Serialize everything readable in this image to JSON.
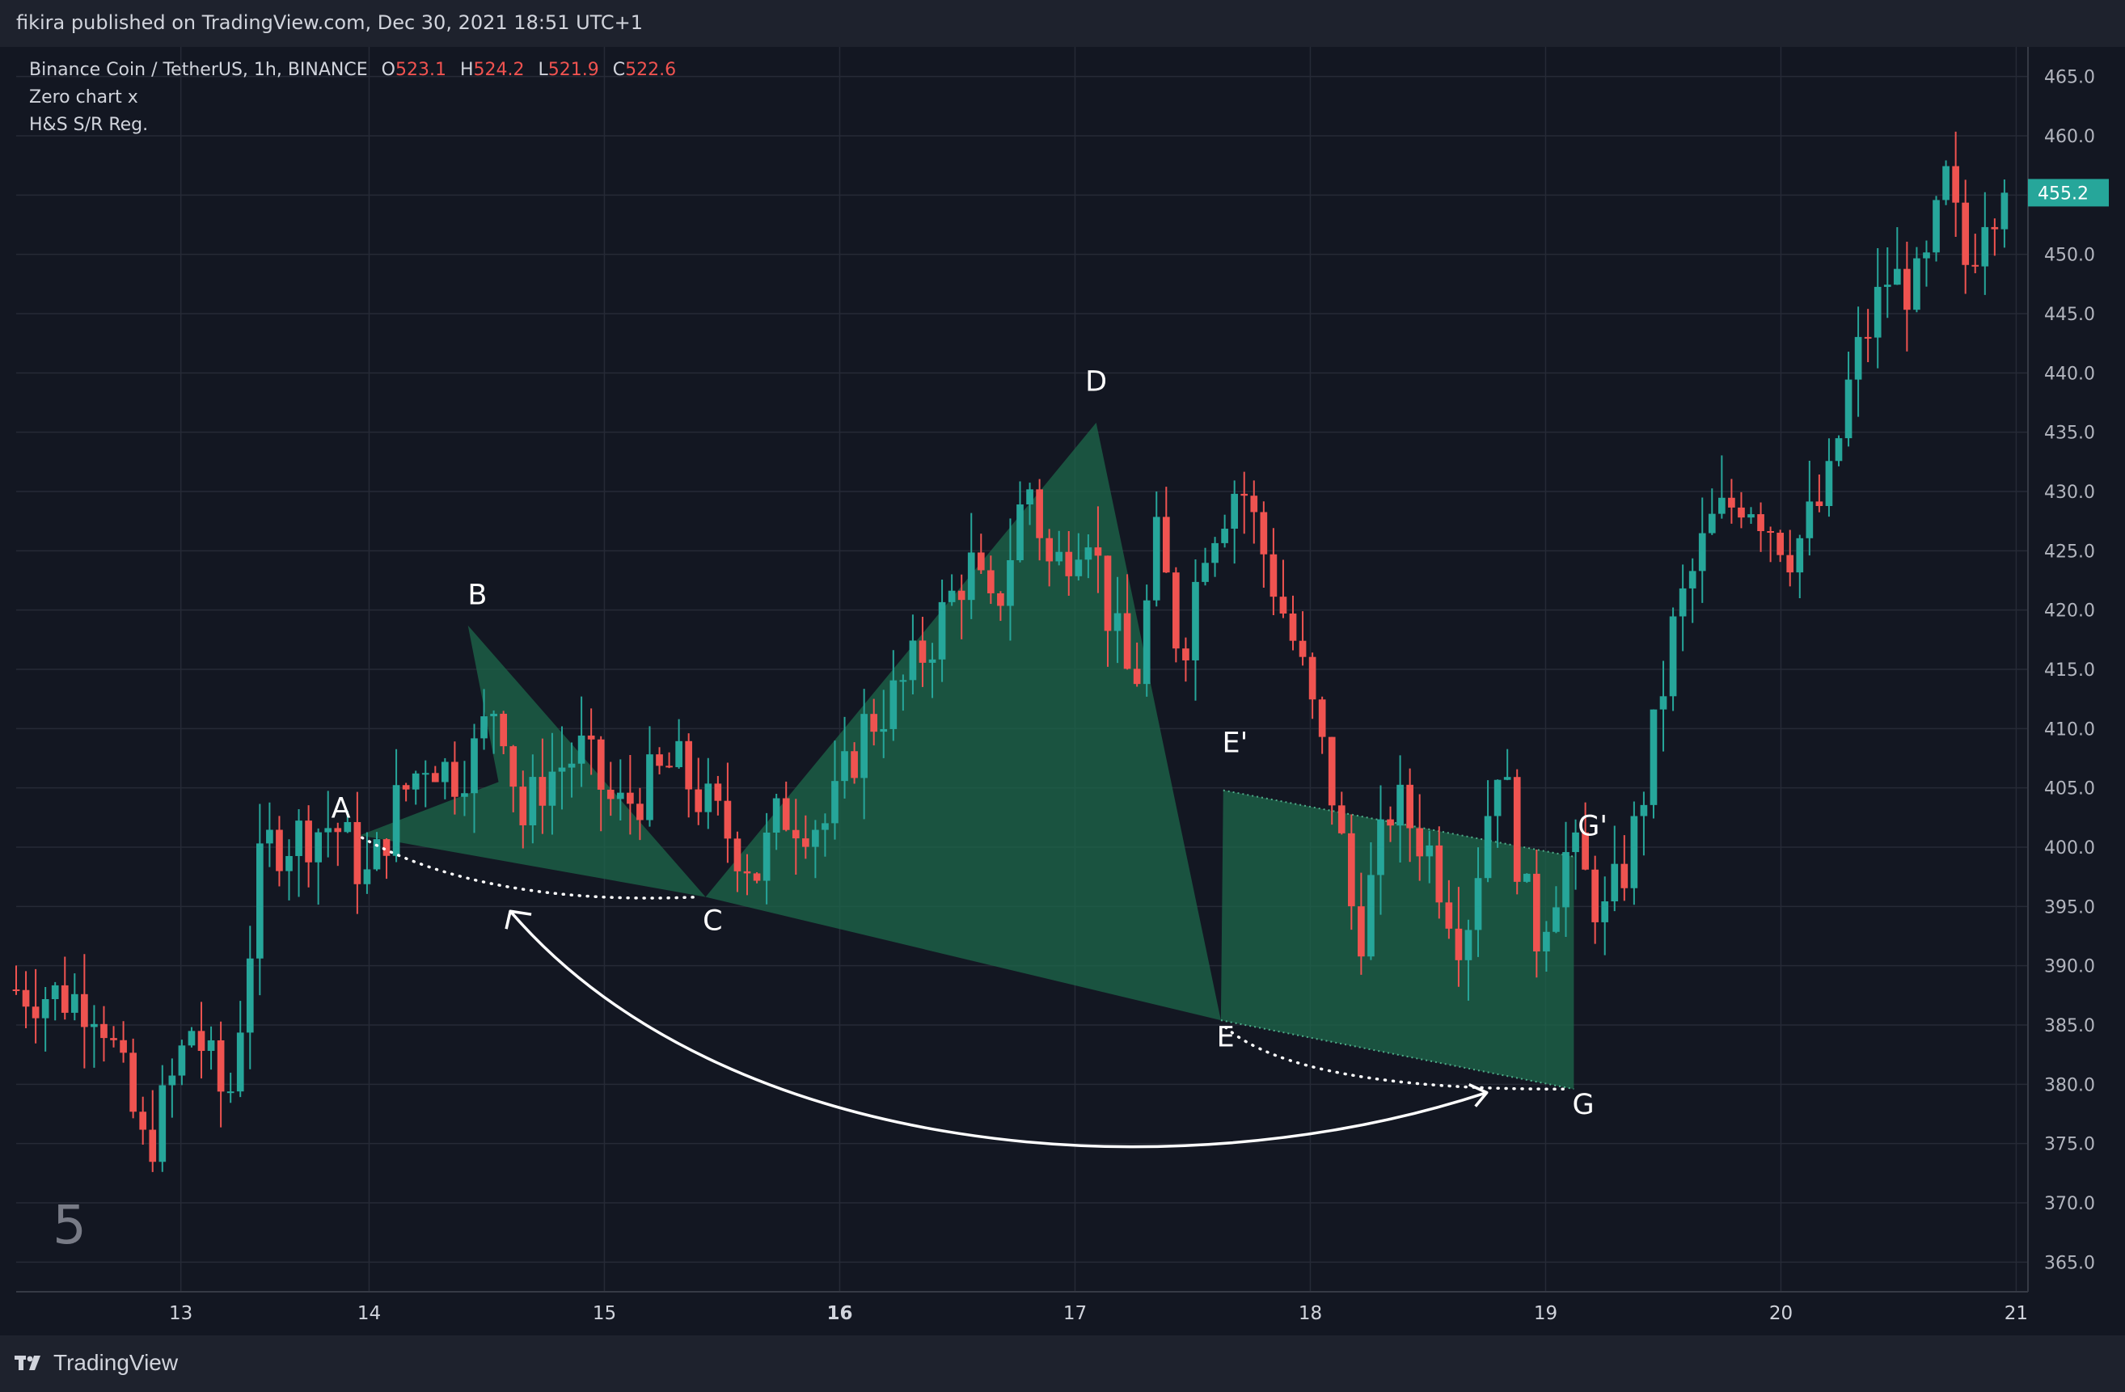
{
  "header": {
    "published_text": "fikira published on TradingView.com, Dec 30, 2021 18:51 UTC+1"
  },
  "legend": {
    "symbol": "Binance Coin / TetherUS, 1h, BINANCE",
    "open_label": "O",
    "open": "523.1",
    "high_label": "H",
    "high": "524.2",
    "low_label": "L",
    "low": "521.9",
    "close_label": "C",
    "close": "522.6",
    "indicator1": "Zero chart x",
    "indicator2": "H&S S/R Reg."
  },
  "chart_number": "5",
  "footer": {
    "brand": "TradingView"
  },
  "colors": {
    "background": "#131722",
    "up": "#26a69a",
    "down": "#ef5350",
    "pattern_fill": "#1d6b4c",
    "price_tag": "#26a69a"
  },
  "chart_data": {
    "type": "candlestick",
    "symbol": "BNBUSDT",
    "interval": "1h",
    "ylim": [
      362.5,
      467.5
    ],
    "y_ticks": [
      "465.0",
      "460.0",
      "455.0",
      "450.0",
      "445.0",
      "440.0",
      "435.0",
      "430.0",
      "425.0",
      "420.0",
      "415.0",
      "410.0",
      "405.0",
      "400.0",
      "395.0",
      "390.0",
      "385.0",
      "380.0",
      "375.0",
      "370.0",
      "365.0"
    ],
    "x_ticks": [
      {
        "label": "13",
        "bold": false,
        "pos": 12.7
      },
      {
        "label": "14",
        "bold": false,
        "pos": 13.5
      },
      {
        "label": "15",
        "bold": false,
        "pos": 14.5
      },
      {
        "label": "16",
        "bold": true,
        "pos": 15.5
      },
      {
        "label": "17",
        "bold": false,
        "pos": 16.5
      },
      {
        "label": "18",
        "bold": false,
        "pos": 17.5
      },
      {
        "label": "19",
        "bold": false,
        "pos": 18.5
      },
      {
        "label": "20",
        "bold": false,
        "pos": 19.5
      },
      {
        "label": "21",
        "bold": false,
        "pos": 20.5
      }
    ],
    "last_price": "455.2",
    "anchors": [
      [
        12.0,
        388
      ],
      [
        12.35,
        387
      ],
      [
        12.55,
        374
      ],
      [
        12.75,
        385
      ],
      [
        12.9,
        378
      ],
      [
        13.05,
        400
      ],
      [
        13.35,
        402
      ],
      [
        13.5,
        397
      ],
      [
        13.6,
        403
      ],
      [
        13.75,
        408
      ],
      [
        13.85,
        406
      ],
      [
        13.95,
        408
      ],
      [
        14.05,
        413
      ],
      [
        14.15,
        402
      ],
      [
        14.25,
        406
      ],
      [
        14.4,
        408
      ],
      [
        14.55,
        403
      ],
      [
        14.8,
        407
      ],
      [
        14.95,
        403
      ],
      [
        15.15,
        398
      ],
      [
        15.25,
        403
      ],
      [
        15.45,
        402
      ],
      [
        15.6,
        410
      ],
      [
        15.75,
        413
      ],
      [
        15.9,
        418
      ],
      [
        16.05,
        424
      ],
      [
        16.15,
        419
      ],
      [
        16.3,
        431
      ],
      [
        16.4,
        423
      ],
      [
        16.55,
        428
      ],
      [
        16.65,
        419
      ],
      [
        16.75,
        413
      ],
      [
        16.85,
        426
      ],
      [
        16.95,
        416
      ],
      [
        17.05,
        426
      ],
      [
        17.2,
        431
      ],
      [
        17.3,
        425
      ],
      [
        17.45,
        416
      ],
      [
        17.6,
        404
      ],
      [
        17.7,
        392
      ],
      [
        17.85,
        404
      ],
      [
        18.0,
        400
      ],
      [
        18.15,
        392
      ],
      [
        18.3,
        408
      ],
      [
        18.45,
        392
      ],
      [
        18.6,
        400
      ],
      [
        18.75,
        394
      ],
      [
        18.85,
        399
      ],
      [
        18.9,
        403
      ],
      [
        19.05,
        419
      ],
      [
        19.2,
        427
      ],
      [
        19.35,
        430
      ],
      [
        19.55,
        425
      ],
      [
        19.7,
        430
      ],
      [
        19.8,
        440
      ],
      [
        19.95,
        448
      ],
      [
        20.1,
        447
      ],
      [
        20.2,
        456
      ],
      [
        20.3,
        448
      ],
      [
        20.35,
        454
      ],
      [
        20.45,
        455.2
      ]
    ],
    "pattern_points": {
      "A": [
        13.46,
        401
      ],
      "B": [
        13.92,
        418.7
      ],
      "C": [
        14.93,
        395.8
      ],
      "D": [
        16.59,
        435.8
      ],
      "E": [
        17.12,
        385.4
      ],
      "E_prime": [
        17.13,
        404.8
      ],
      "G": [
        18.62,
        379.6
      ],
      "G_prime": [
        18.62,
        399.2
      ],
      "F": [
        14.05,
        405.5
      ]
    },
    "labels": [
      {
        "text": "A",
        "x": 13.38,
        "y": 402.5
      },
      {
        "text": "B",
        "x": 13.96,
        "y": 420.5
      },
      {
        "text": "C",
        "x": 14.96,
        "y": 393.0
      },
      {
        "text": "D",
        "x": 16.59,
        "y": 438.5
      },
      {
        "text": "E'",
        "x": 17.18,
        "y": 408.0
      },
      {
        "text": "E",
        "x": 17.14,
        "y": 383.2
      },
      {
        "text": "G'",
        "x": 18.7,
        "y": 401.0
      },
      {
        "text": "G",
        "x": 18.66,
        "y": 377.5
      }
    ]
  }
}
